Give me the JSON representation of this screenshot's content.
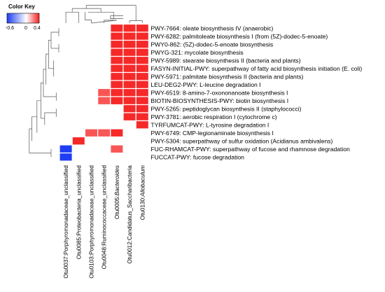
{
  "chart_data": {
    "type": "heatmap",
    "color_key": {
      "title": "Color Key",
      "tick_labels": [
        "-0.6",
        "0",
        "0.4"
      ],
      "range": [
        -0.6,
        0.4
      ],
      "low_color": "#1e3df5",
      "mid_color": "#ffffff",
      "high_color": "#f51e1e"
    },
    "rows": [
      "PWY-7664: oleate biosynthesis IV (anaerobic)",
      "PWY-6282: palmitoleate biosynthesis I (from (5Z)-dodec-5-enoate)",
      "PWY0-862: (5Z)-dodec-5-enoate biosynthesis",
      "PWYG-321: mycolate biosynthesis",
      "PWY-5989: stearate biosynthesis II (bacteria and plants)",
      "FASYN-INITIAL-PWY: superpathway of fatty acid biosynthesis initiation (E. coli)",
      "PWY-5971: palmitate biosynthesis II (bacteria and plants)",
      "LEU-DEG2-PWY: L-leucine degradation I",
      "PWY-6519: 8-amino-7-oxononanoate biosynthesis I",
      "BIOTIN-BIOSYNTHESIS-PWY: biotin biosynthesis I",
      "PWY-5265: peptidoglycan biosynthesis II (staphylococci)",
      "PWY-3781: aerobic respiration I (cytochrome c)",
      "TYRFUMCAT-PWY: L-tyrosine degradation I",
      "PWY-6749: CMP-legionaminate biosynthesis I",
      "PWY-5304: superpathway of sulfur oxidation (Acidianus ambivalens)",
      "FUC-RHAMCAT-PWY: superpathway of fucose and rhamnose degradation",
      "FUCCAT-PWY: fucose degradation"
    ],
    "columns": [
      {
        "plain": "Otu0037:Porphyromonadaceae_unclassified",
        "prefix": "",
        "italic": ""
      },
      {
        "plain": "Otu0085:Proteobacteria_unclassified",
        "prefix": "",
        "italic": ""
      },
      {
        "plain": "Otu0103:Porphyromonadaceae_unclassified",
        "prefix": "",
        "italic": ""
      },
      {
        "plain": "Otu0048:Ruminococcaceae_unclassified",
        "prefix": "",
        "italic": ""
      },
      {
        "plain": "",
        "prefix": "Otu0005:",
        "italic": "Bacteroides"
      },
      {
        "plain": "Otu0012:Candidatus_Saccharibacteria",
        "prefix": "",
        "italic": ""
      },
      {
        "plain": "",
        "prefix": "Otu0130:",
        "italic": "Allobaculum"
      }
    ],
    "values": [
      [
        0,
        0,
        0,
        0,
        0.38,
        0.38,
        0.38
      ],
      [
        0,
        0,
        0,
        0,
        0.38,
        0.38,
        0.38
      ],
      [
        0,
        0,
        0,
        0,
        0.38,
        0.38,
        0.38
      ],
      [
        0,
        0,
        0,
        0,
        0.38,
        0.38,
        0.38
      ],
      [
        0,
        0,
        0,
        0,
        0.38,
        0.38,
        0.38
      ],
      [
        0,
        0,
        0,
        0,
        0.38,
        0.38,
        0.38
      ],
      [
        0,
        0,
        0,
        0,
        0.38,
        0.38,
        0.38
      ],
      [
        0,
        0,
        0,
        0,
        0.38,
        0.38,
        0.38
      ],
      [
        0,
        0,
        0,
        0.3,
        0.38,
        0.38,
        0.38
      ],
      [
        0,
        0,
        0,
        0.3,
        0.38,
        0.38,
        0.38
      ],
      [
        0,
        0,
        0,
        0,
        0,
        0.38,
        0.38
      ],
      [
        0,
        0,
        0,
        0,
        0,
        0.38,
        0.38
      ],
      [
        0,
        0,
        0,
        0,
        0,
        0,
        0.38
      ],
      [
        0,
        0,
        0.3,
        0.3,
        0.38,
        0,
        0
      ],
      [
        0,
        0.38,
        0,
        0,
        0,
        0,
        0
      ],
      [
        -0.6,
        0,
        0,
        0,
        0.3,
        0,
        0
      ],
      [
        -0.6,
        0,
        0,
        0,
        0,
        0,
        0
      ]
    ],
    "dendrogram_top": [
      [
        [
          3,
          5
        ],
        [
          5,
          4.3
        ],
        [
          4,
          4.3
        ],
        [
          4,
          5
        ]
      ],
      [
        [
          5.5,
          3.2
        ],
        [
          4.5,
          3.2
        ],
        [
          4.5,
          3.9
        ],
        [
          5.5,
          3.9
        ]
      ],
      [
        [
          4.75,
          2.6
        ],
        [
          4.75,
          3.9
        ],
        [
          4.5,
          3.9
        ]
      ],
      [
        [
          2.5,
          2.3
        ],
        [
          2.5,
          4.2
        ],
        [
          3,
          4.2
        ],
        [
          3,
          5
        ]
      ],
      [
        [
          6.5,
          1.8
        ],
        [
          6.5,
          4.4
        ],
        [
          7,
          4.4
        ],
        [
          7,
          5
        ]
      ],
      [
        [
          6,
          5
        ],
        [
          6,
          4.4
        ],
        [
          6.5,
          4.4
        ]
      ],
      [
        [
          2.75,
          2.3
        ],
        [
          4.75,
          2.3
        ],
        [
          4.75,
          2.6
        ]
      ],
      [
        [
          1,
          5
        ],
        [
          1,
          2.3
        ],
        [
          2,
          2.3
        ],
        [
          2,
          5
        ]
      ],
      [
        [
          1.5,
          1.4
        ],
        [
          1.5,
          2.3
        ]
      ],
      [
        [
          3.75,
          1.4
        ],
        [
          3.75,
          2.3
        ]
      ],
      [
        [
          1.5,
          1.4
        ],
        [
          3.75,
          1.4
        ]
      ],
      [
        [
          2.6,
          0.6
        ],
        [
          2.6,
          1.4
        ]
      ],
      [
        [
          6.5,
          0.6
        ],
        [
          6.5,
          1.8
        ]
      ],
      [
        [
          2.6,
          0.6
        ],
        [
          6.5,
          0.6
        ]
      ]
    ],
    "dendrogram_left": [
      [
        [
          1,
          1.2
        ],
        [
          2,
          1.2
        ]
      ],
      [
        [
          1.5,
          1.2
        ],
        [
          1.5,
          0.9
        ],
        [
          3.5,
          0.9
        ]
      ],
      [
        [
          3,
          1.2
        ],
        [
          4,
          1.2
        ]
      ],
      [
        [
          3.5,
          1.2
        ],
        [
          3.5,
          0.9
        ]
      ],
      [
        [
          2.5,
          0.9
        ],
        [
          2.5,
          0.8
        ],
        [
          6,
          0.8
        ]
      ],
      [
        [
          5,
          1.0
        ],
        [
          7,
          1.0
        ]
      ],
      [
        [
          6,
          1.0
        ],
        [
          6,
          0.8
        ]
      ],
      [
        [
          4.2,
          0.8
        ],
        [
          4.2,
          0.7
        ],
        [
          8,
          0.7
        ]
      ],
      [
        [
          9,
          1.1
        ],
        [
          10,
          1.1
        ]
      ],
      [
        [
          9.5,
          1.1
        ],
        [
          9.5,
          0.6
        ]
      ],
      [
        [
          6.1,
          0.7
        ],
        [
          6.1,
          0.6
        ],
        [
          9.5,
          0.6
        ]
      ],
      [
        [
          11,
          1.1
        ],
        [
          12,
          1.1
        ]
      ],
      [
        [
          11.5,
          1.1
        ],
        [
          11.5,
          0.65
        ],
        [
          13,
          0.65
        ]
      ],
      [
        [
          12.2,
          0.65
        ],
        [
          12.2,
          0.5
        ]
      ],
      [
        [
          7.8,
          0.6
        ],
        [
          7.8,
          0.5
        ],
        [
          12.2,
          0.5
        ]
      ],
      [
        [
          10,
          0.5
        ],
        [
          10,
          0.35
        ],
        [
          14,
          0.35
        ]
      ],
      [
        [
          12,
          0.35
        ],
        [
          12,
          0.15
        ],
        [
          15,
          0.15
        ]
      ],
      [
        [
          16,
          0.9
        ],
        [
          17,
          0.9
        ]
      ],
      [
        [
          16.5,
          0.9
        ],
        [
          16.5,
          0.25
        ]
      ],
      [
        [
          13.5,
          0.15
        ],
        [
          13.5,
          0.05
        ],
        [
          16.5,
          0.05
        ],
        [
          16.5,
          0.25
        ]
      ]
    ]
  }
}
